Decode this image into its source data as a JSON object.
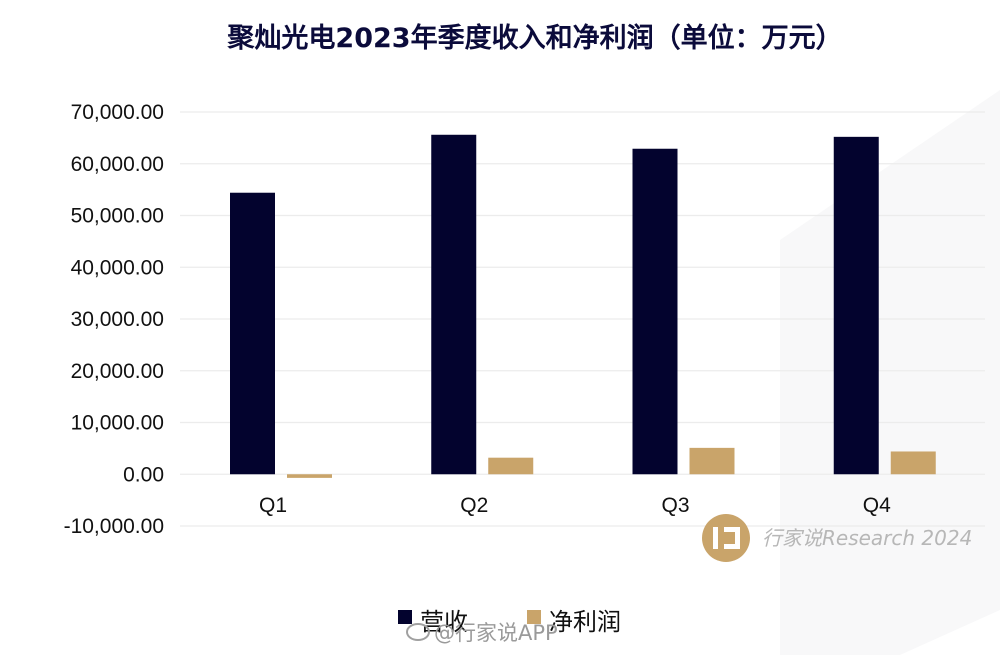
{
  "chart_data": {
    "type": "bar",
    "title": "聚灿光电2023年季度收入和净利润（单位：万元）",
    "categories": [
      "Q1",
      "Q2",
      "Q3",
      "Q4"
    ],
    "series": [
      {
        "name": "营收",
        "color": "#03032e",
        "values": [
          54400,
          65600,
          62900,
          65200
        ]
      },
      {
        "name": "净利润",
        "color": "#c9a46a",
        "values": [
          -700,
          3200,
          5100,
          4400
        ]
      }
    ],
    "ylim": [
      -10000,
      70000
    ],
    "yticks": [
      "-10,000.00",
      "0.00",
      "10,000.00",
      "20,000.00",
      "30,000.00",
      "40,000.00",
      "50,000.00",
      "60,000.00",
      "70,000.00"
    ],
    "ytick_values": [
      -10000,
      0,
      10000,
      20000,
      30000,
      40000,
      50000,
      60000,
      70000
    ],
    "grid": true,
    "legend_position": "bottom"
  },
  "watermarks": {
    "brand": "行家说Research 2024",
    "weibo": "@行家说APP",
    "brand_icon": "ixiang-logo-icon",
    "weibo_icon": "weibo-icon"
  }
}
